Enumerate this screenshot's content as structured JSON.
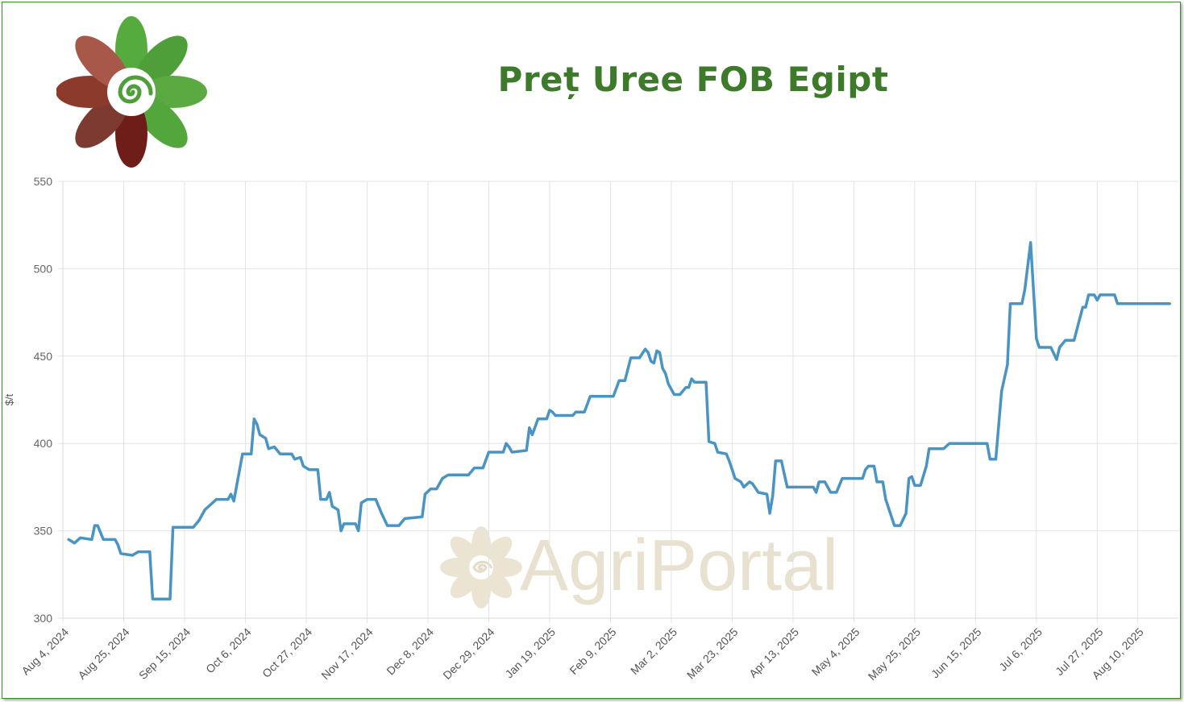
{
  "header": {
    "title": "Preț Uree FOB Egipt",
    "logo": "agriportal-flower-logo",
    "watermark": "AgriPortal"
  },
  "colors": {
    "title": "#3d7a2a",
    "line": "#4a94c4",
    "grid": "#e3e3e3",
    "border": "#3c8a2e"
  },
  "chart_data": {
    "type": "line",
    "title": "Preț Uree FOB Egipt",
    "xlabel": "",
    "ylabel": "$/t",
    "ylim": [
      300,
      550
    ],
    "y_ticks": [
      300,
      350,
      400,
      450,
      500,
      550
    ],
    "x_range": [
      "2024-08-04",
      "2025-08-24"
    ],
    "x_tick_dates": [
      "2024-08-04",
      "2024-08-25",
      "2024-09-15",
      "2024-10-06",
      "2024-10-27",
      "2024-11-17",
      "2024-12-08",
      "2024-12-29",
      "2025-01-19",
      "2025-02-09",
      "2025-03-02",
      "2025-03-23",
      "2025-04-13",
      "2025-05-04",
      "2025-05-25",
      "2025-06-15",
      "2025-07-06",
      "2025-07-27",
      "2025-08-10"
    ],
    "x_tick_labels": [
      "Aug 4, 2024",
      "Aug 25, 2024",
      "Sep 15, 2024",
      "Oct 6, 2024",
      "Oct 27, 2024",
      "Nov 17, 2024",
      "Dec 8, 2024",
      "Dec 29, 2024",
      "Jan 19, 2025",
      "Feb 9, 2025",
      "Mar 2, 2025",
      "Mar 23, 2025",
      "Apr 13, 2025",
      "May 4, 2025",
      "May 25, 2025",
      "Jun 15, 2025",
      "Jul 6, 2025",
      "Jul 27, 2025",
      "Aug 10, 2025"
    ],
    "grid": true,
    "legend": "none",
    "series": [
      {
        "points": [
          [
            "2024-08-06",
            345
          ],
          [
            "2024-08-08",
            343
          ],
          [
            "2024-08-10",
            346
          ],
          [
            "2024-08-14",
            345
          ],
          [
            "2024-08-15",
            353
          ],
          [
            "2024-08-16",
            353
          ],
          [
            "2024-08-18",
            345
          ],
          [
            "2024-08-22",
            345
          ],
          [
            "2024-08-23",
            342
          ],
          [
            "2024-08-24",
            337
          ],
          [
            "2024-08-28",
            336
          ],
          [
            "2024-08-30",
            338
          ],
          [
            "2024-09-03",
            338
          ],
          [
            "2024-09-04",
            311
          ],
          [
            "2024-09-10",
            311
          ],
          [
            "2024-09-11",
            352
          ],
          [
            "2024-09-18",
            352
          ],
          [
            "2024-09-20",
            356
          ],
          [
            "2024-09-22",
            362
          ],
          [
            "2024-09-24",
            365
          ],
          [
            "2024-09-26",
            368
          ],
          [
            "2024-09-30",
            368
          ],
          [
            "2024-10-01",
            371
          ],
          [
            "2024-10-02",
            367
          ],
          [
            "2024-10-04",
            385
          ],
          [
            "2024-10-05",
            394
          ],
          [
            "2024-10-08",
            394
          ],
          [
            "2024-10-09",
            414
          ],
          [
            "2024-10-10",
            411
          ],
          [
            "2024-10-11",
            405
          ],
          [
            "2024-10-13",
            403
          ],
          [
            "2024-10-14",
            397
          ],
          [
            "2024-10-16",
            398
          ],
          [
            "2024-10-18",
            394
          ],
          [
            "2024-10-22",
            394
          ],
          [
            "2024-10-23",
            391
          ],
          [
            "2024-10-25",
            392
          ],
          [
            "2024-10-26",
            387
          ],
          [
            "2024-10-28",
            385
          ],
          [
            "2024-10-31",
            385
          ],
          [
            "2024-11-01",
            368
          ],
          [
            "2024-11-03",
            368
          ],
          [
            "2024-11-04",
            372
          ],
          [
            "2024-11-05",
            364
          ],
          [
            "2024-11-07",
            362
          ],
          [
            "2024-11-08",
            350
          ],
          [
            "2024-11-09",
            354
          ],
          [
            "2024-11-13",
            354
          ],
          [
            "2024-11-14",
            350
          ],
          [
            "2024-11-15",
            366
          ],
          [
            "2024-11-17",
            368
          ],
          [
            "2024-11-20",
            368
          ],
          [
            "2024-11-22",
            360
          ],
          [
            "2024-11-24",
            353
          ],
          [
            "2024-11-28",
            353
          ],
          [
            "2024-11-30",
            357
          ],
          [
            "2024-12-06",
            358
          ],
          [
            "2024-12-07",
            371
          ],
          [
            "2024-12-09",
            374
          ],
          [
            "2024-12-11",
            374
          ],
          [
            "2024-12-13",
            380
          ],
          [
            "2024-12-15",
            382
          ],
          [
            "2024-12-22",
            382
          ],
          [
            "2024-12-24",
            386
          ],
          [
            "2024-12-27",
            386
          ],
          [
            "2024-12-29",
            395
          ],
          [
            "2025-01-03",
            395
          ],
          [
            "2025-01-04",
            400
          ],
          [
            "2025-01-05",
            398
          ],
          [
            "2025-01-06",
            395
          ],
          [
            "2025-01-11",
            396
          ],
          [
            "2025-01-12",
            409
          ],
          [
            "2025-01-13",
            405
          ],
          [
            "2025-01-15",
            414
          ],
          [
            "2025-01-18",
            414
          ],
          [
            "2025-01-19",
            419
          ],
          [
            "2025-01-20",
            418
          ],
          [
            "2025-01-21",
            416
          ],
          [
            "2025-01-27",
            416
          ],
          [
            "2025-01-28",
            418
          ],
          [
            "2025-01-31",
            418
          ],
          [
            "2025-02-02",
            427
          ],
          [
            "2025-02-10",
            427
          ],
          [
            "2025-02-12",
            436
          ],
          [
            "2025-02-14",
            436
          ],
          [
            "2025-02-16",
            449
          ],
          [
            "2025-02-19",
            449
          ],
          [
            "2025-02-21",
            454
          ],
          [
            "2025-02-22",
            452
          ],
          [
            "2025-02-23",
            447
          ],
          [
            "2025-02-24",
            446
          ],
          [
            "2025-02-25",
            453
          ],
          [
            "2025-02-26",
            452
          ],
          [
            "2025-02-27",
            443
          ],
          [
            "2025-02-28",
            440
          ],
          [
            "2025-03-01",
            434
          ],
          [
            "2025-03-03",
            428
          ],
          [
            "2025-03-05",
            428
          ],
          [
            "2025-03-07",
            432
          ],
          [
            "2025-03-08",
            432
          ],
          [
            "2025-03-09",
            437
          ],
          [
            "2025-03-10",
            435
          ],
          [
            "2025-03-14",
            435
          ],
          [
            "2025-03-15",
            401
          ],
          [
            "2025-03-17",
            400
          ],
          [
            "2025-03-18",
            395
          ],
          [
            "2025-03-21",
            394
          ],
          [
            "2025-03-22",
            390
          ],
          [
            "2025-03-24",
            380
          ],
          [
            "2025-03-26",
            378
          ],
          [
            "2025-03-27",
            375
          ],
          [
            "2025-03-29",
            378
          ],
          [
            "2025-03-30",
            377
          ],
          [
            "2025-04-01",
            372
          ],
          [
            "2025-04-04",
            371
          ],
          [
            "2025-04-05",
            360
          ],
          [
            "2025-04-06",
            370
          ],
          [
            "2025-04-07",
            390
          ],
          [
            "2025-04-09",
            390
          ],
          [
            "2025-04-11",
            375
          ],
          [
            "2025-04-16",
            375
          ],
          [
            "2025-04-20",
            375
          ],
          [
            "2025-04-21",
            372
          ],
          [
            "2025-04-22",
            378
          ],
          [
            "2025-04-24",
            378
          ],
          [
            "2025-04-26",
            372
          ],
          [
            "2025-04-28",
            372
          ],
          [
            "2025-04-30",
            380
          ],
          [
            "2025-05-07",
            380
          ],
          [
            "2025-05-08",
            385
          ],
          [
            "2025-05-09",
            387
          ],
          [
            "2025-05-11",
            387
          ],
          [
            "2025-05-12",
            378
          ],
          [
            "2025-05-14",
            378
          ],
          [
            "2025-05-15",
            368
          ],
          [
            "2025-05-17",
            358
          ],
          [
            "2025-05-18",
            353
          ],
          [
            "2025-05-20",
            353
          ],
          [
            "2025-05-22",
            360
          ],
          [
            "2025-05-23",
            380
          ],
          [
            "2025-05-24",
            381
          ],
          [
            "2025-05-25",
            376
          ],
          [
            "2025-05-27",
            376
          ],
          [
            "2025-05-29",
            387
          ],
          [
            "2025-05-30",
            397
          ],
          [
            "2025-06-04",
            397
          ],
          [
            "2025-06-06",
            400
          ],
          [
            "2025-06-19",
            400
          ],
          [
            "2025-06-20",
            391
          ],
          [
            "2025-06-22",
            391
          ],
          [
            "2025-06-24",
            430
          ],
          [
            "2025-06-26",
            445
          ],
          [
            "2025-06-27",
            480
          ],
          [
            "2025-06-30",
            480
          ],
          [
            "2025-07-01",
            480
          ],
          [
            "2025-07-02",
            488
          ],
          [
            "2025-07-04",
            515
          ],
          [
            "2025-07-06",
            460
          ],
          [
            "2025-07-07",
            455
          ],
          [
            "2025-07-11",
            455
          ],
          [
            "2025-07-13",
            448
          ],
          [
            "2025-07-14",
            455
          ],
          [
            "2025-07-16",
            459
          ],
          [
            "2025-07-19",
            459
          ],
          [
            "2025-07-22",
            478
          ],
          [
            "2025-07-23",
            478
          ],
          [
            "2025-07-24",
            485
          ],
          [
            "2025-07-26",
            485
          ],
          [
            "2025-07-27",
            482
          ],
          [
            "2025-07-28",
            485
          ],
          [
            "2025-08-02",
            485
          ],
          [
            "2025-08-03",
            480
          ],
          [
            "2025-08-21",
            480
          ]
        ]
      }
    ]
  }
}
